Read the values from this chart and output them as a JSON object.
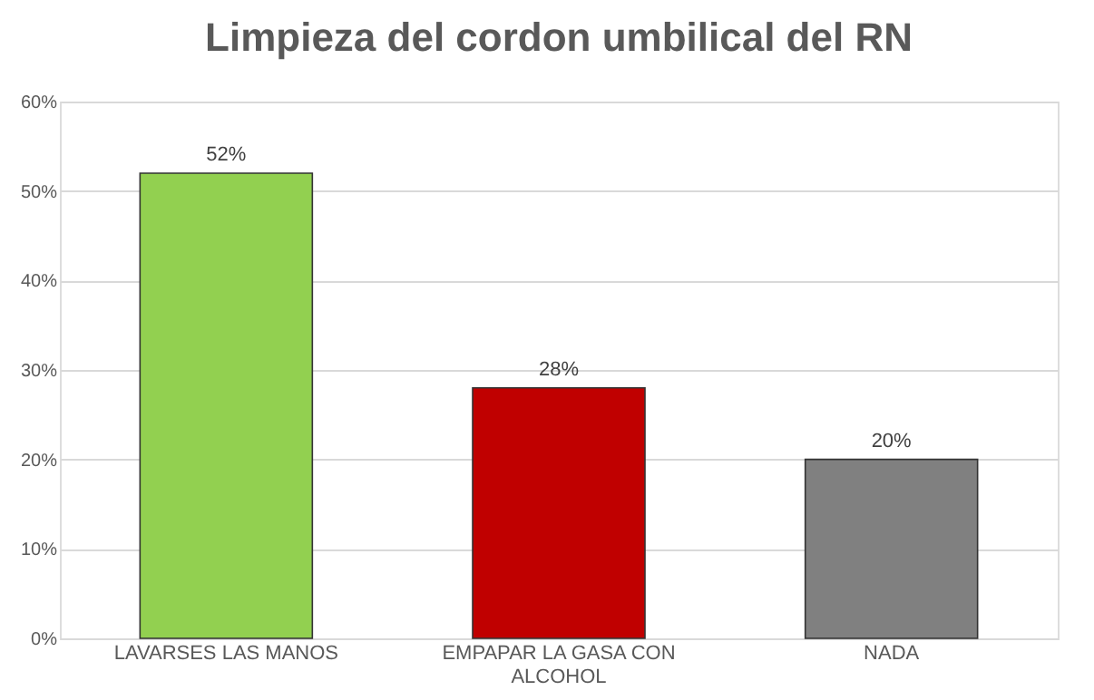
{
  "chart_data": {
    "type": "bar",
    "title": "Limpieza del cordon umbilical del RN",
    "categories": [
      "LAVARSES LAS MANOS",
      "EMPAPAR LA GASA CON ALCOHOL",
      "NADA"
    ],
    "values": [
      52,
      28,
      20
    ],
    "colors": [
      "#92d050",
      "#c00000",
      "#808080"
    ],
    "value_labels": [
      "52%",
      "28%",
      "20%"
    ],
    "ylim": [
      0,
      60
    ],
    "yticks": [
      {
        "value": 0,
        "label": "0%"
      },
      {
        "value": 10,
        "label": "10%"
      },
      {
        "value": 20,
        "label": "20%"
      },
      {
        "value": 30,
        "label": "30%"
      },
      {
        "value": 40,
        "label": "40%"
      },
      {
        "value": 50,
        "label": "50%"
      },
      {
        "value": 60,
        "label": "60%"
      }
    ],
    "grid": "y"
  }
}
